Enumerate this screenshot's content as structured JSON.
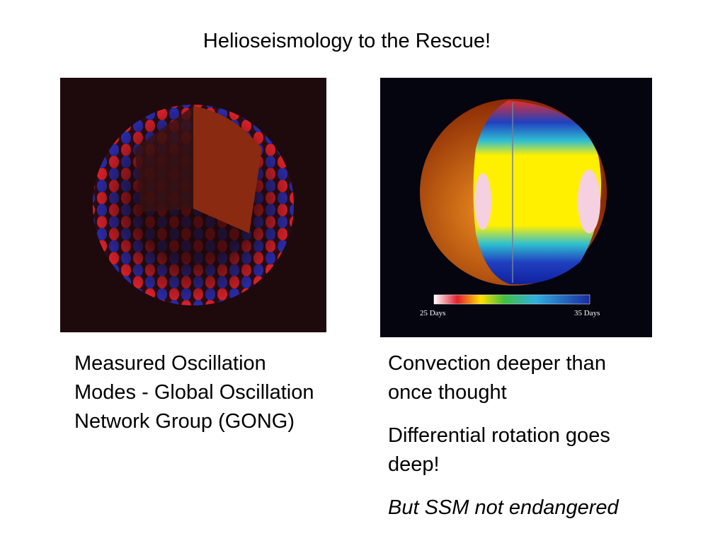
{
  "title": "Helioseismology to the Rescue!",
  "left_caption": "Measured Oscillation Modes - Global Oscillation Network Group (GONG)",
  "right_image": {
    "scale_min_label": "25 Days",
    "scale_max_label": "35 Days"
  },
  "right_points": [
    "Convection deeper than once thought",
    "Differential rotation goes deep!",
    "But SSM not endangered"
  ]
}
